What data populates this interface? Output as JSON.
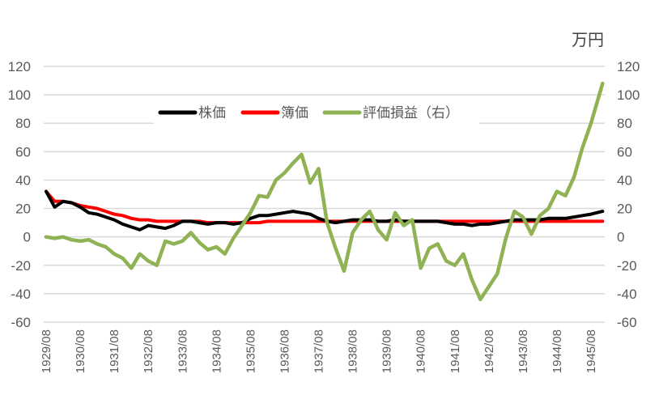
{
  "chart_data": {
    "type": "line",
    "title": "",
    "unit_label": "万円",
    "xlabel": "",
    "ylabel": "",
    "ylim": [
      -60,
      120
    ],
    "y2lim": [
      -60,
      120
    ],
    "y_ticks": [
      120,
      100,
      80,
      60,
      40,
      20,
      0,
      -20,
      -40,
      -60
    ],
    "y2_ticks": [
      120,
      100,
      80,
      60,
      40,
      20,
      0,
      -20,
      -40,
      -60
    ],
    "x_tick_labels": [
      "1929/08",
      "1930/08",
      "1931/08",
      "1932/08",
      "1933/08",
      "1934/08",
      "1935/08",
      "1936/08",
      "1937/08",
      "1938/08",
      "1939/08",
      "1940/08",
      "1941/08",
      "1942/08",
      "1943/08",
      "1944/08",
      "1945/08"
    ],
    "grid": true,
    "legend_position": "top-center-inside",
    "legend": [
      "株価",
      "簿価",
      "評価損益（右）"
    ],
    "x": [
      1929.58,
      1929.83,
      1930.08,
      1930.33,
      1930.58,
      1930.83,
      1931.08,
      1931.33,
      1931.58,
      1931.83,
      1932.08,
      1932.33,
      1932.58,
      1932.83,
      1933.08,
      1933.33,
      1933.58,
      1933.83,
      1934.08,
      1934.33,
      1934.58,
      1934.83,
      1935.08,
      1935.33,
      1935.58,
      1935.83,
      1936.08,
      1936.33,
      1936.58,
      1936.83,
      1937.08,
      1937.33,
      1937.58,
      1937.83,
      1938.08,
      1938.33,
      1938.58,
      1938.83,
      1939.08,
      1939.33,
      1939.58,
      1939.83,
      1940.08,
      1940.33,
      1940.58,
      1940.83,
      1941.08,
      1941.33,
      1941.58,
      1941.83,
      1942.08,
      1942.33,
      1942.58,
      1942.83,
      1943.08,
      1943.33,
      1943.58,
      1943.83,
      1944.08,
      1944.33,
      1944.58,
      1944.83,
      1945.08,
      1945.33,
      1945.58,
      1945.92
    ],
    "series": [
      {
        "name": "株価",
        "axis": "left",
        "color": "#000000",
        "values": [
          32,
          21,
          25,
          24,
          21,
          17,
          16,
          14,
          12,
          9,
          7,
          5,
          8,
          7,
          6,
          8,
          11,
          11,
          10,
          9,
          10,
          10,
          9,
          10,
          13,
          15,
          15,
          16,
          17,
          18,
          17,
          16,
          13,
          11,
          10,
          11,
          12,
          12,
          12,
          11,
          11,
          12,
          11,
          11,
          11,
          11,
          11,
          10,
          9,
          9,
          8,
          9,
          9,
          10,
          11,
          12,
          12,
          12,
          12,
          13,
          13,
          13,
          14,
          15,
          16,
          18
        ]
      },
      {
        "name": "簿価",
        "axis": "left",
        "color": "#ff0000",
        "values": [
          32,
          25,
          25,
          24,
          22,
          21,
          20,
          18,
          16,
          15,
          13,
          12,
          12,
          11,
          11,
          11,
          11,
          11,
          11,
          10,
          10,
          10,
          10,
          10,
          10,
          10,
          11,
          11,
          11,
          11,
          11,
          11,
          11,
          11,
          11,
          11,
          11,
          11,
          11,
          11,
          11,
          11,
          11,
          11,
          11,
          11,
          11,
          11,
          11,
          11,
          11,
          11,
          11,
          11,
          11,
          11,
          11,
          11,
          11,
          11,
          11,
          11,
          11,
          11,
          11,
          11
        ]
      },
      {
        "name": "評価損益（右）",
        "axis": "right",
        "color": "#8fb255",
        "values": [
          0,
          -1,
          0,
          -2,
          -3,
          -2,
          -5,
          -7,
          -12,
          -15,
          -22,
          -12,
          -17,
          -20,
          -3,
          -5,
          -3,
          3,
          -4,
          -9,
          -7,
          -12,
          -1,
          8,
          17,
          29,
          28,
          40,
          45,
          52,
          58,
          38,
          48,
          10,
          -8,
          -24,
          3,
          12,
          18,
          5,
          -2,
          17,
          8,
          12,
          -22,
          -8,
          -5,
          -17,
          -20,
          -12,
          -30,
          -44,
          -35,
          -26,
          -1,
          18,
          14,
          2,
          15,
          20,
          32,
          29,
          42,
          63,
          80,
          108
        ]
      }
    ]
  }
}
